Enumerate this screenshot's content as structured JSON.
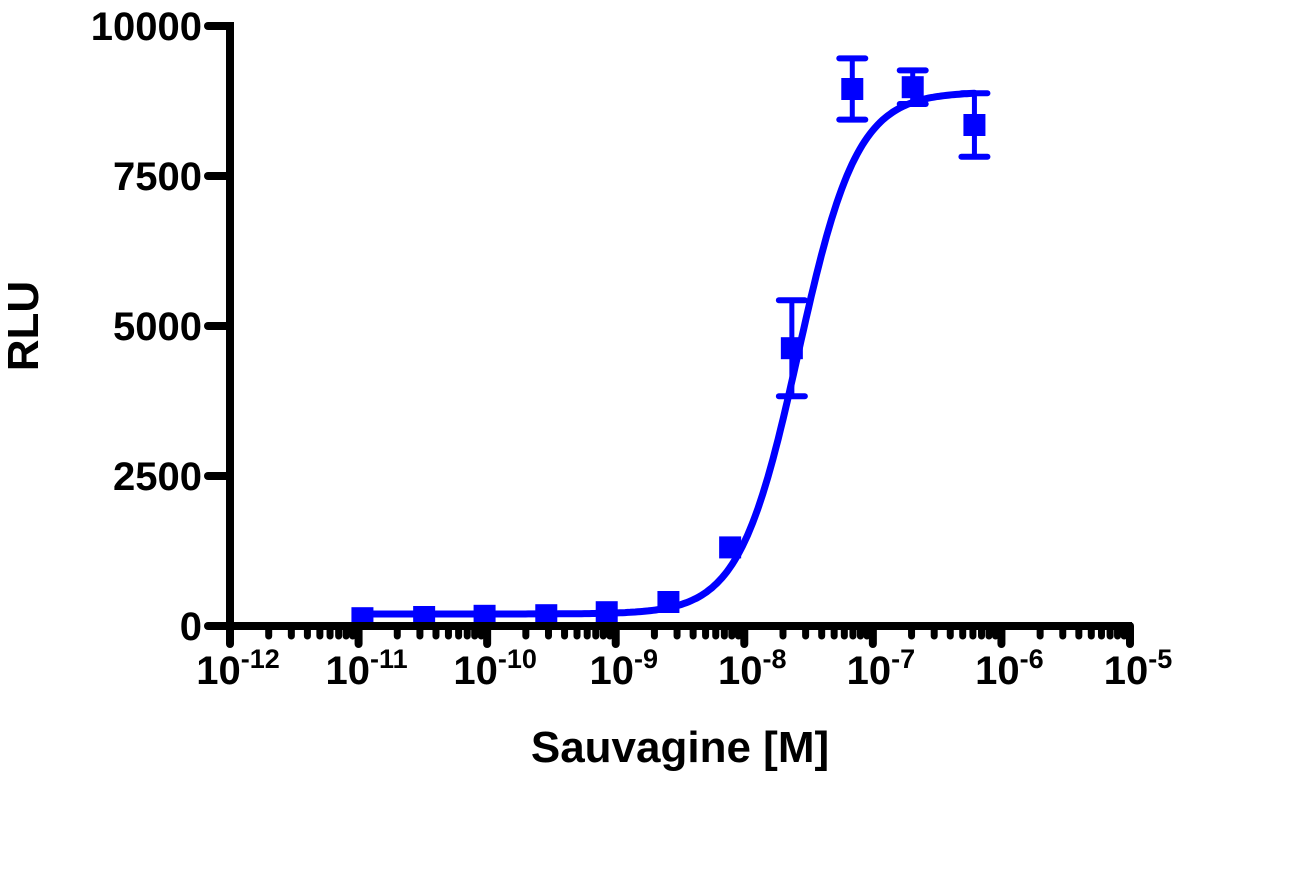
{
  "chart_data": {
    "type": "scatter",
    "title": "",
    "xlabel": "Sauvagine [M]",
    "ylabel": "RLU",
    "xscale": "log",
    "xlim_log10": [
      -12,
      -5
    ],
    "ylim": [
      0,
      10000
    ],
    "grid": false,
    "legend": null,
    "x_tick_labels": [
      {
        "base": "10",
        "exp": "-12",
        "log": -12
      },
      {
        "base": "10",
        "exp": "-11",
        "log": -11
      },
      {
        "base": "10",
        "exp": "-10",
        "log": -10
      },
      {
        "base": "10",
        "exp": "-9",
        "log": -9
      },
      {
        "base": "10",
        "exp": "-8",
        "log": -8
      },
      {
        "base": "10",
        "exp": "-7",
        "log": -7
      },
      {
        "base": "10",
        "exp": "-6",
        "log": -6
      },
      {
        "base": "10",
        "exp": "-5",
        "log": -5
      }
    ],
    "y_ticks": [
      0,
      2500,
      5000,
      7500,
      10000
    ],
    "y_tick_labels": [
      "0",
      "2500",
      "5000",
      "7500",
      "10000"
    ],
    "series": [
      {
        "name": "Sauvagine",
        "color": "#0000ff",
        "marker": "square",
        "points": [
          {
            "log_x": -10.97,
            "y": 130,
            "err": 0
          },
          {
            "log_x": -10.49,
            "y": 150,
            "err": 0
          },
          {
            "log_x": -10.02,
            "y": 170,
            "err": 0
          },
          {
            "log_x": -9.54,
            "y": 180,
            "err": 0
          },
          {
            "log_x": -9.07,
            "y": 230,
            "err": 0
          },
          {
            "log_x": -8.59,
            "y": 400,
            "err": 0
          },
          {
            "log_x": -8.11,
            "y": 1310,
            "err": 0
          },
          {
            "log_x": -7.63,
            "y": 4630,
            "err": 800
          },
          {
            "log_x": -7.16,
            "y": 8950,
            "err": 510
          },
          {
            "log_x": -6.69,
            "y": 8980,
            "err": 280
          },
          {
            "log_x": -6.21,
            "y": 8350,
            "err": 530
          }
        ],
        "fit": {
          "model": "sigmoidal dose-response",
          "bottom": 200,
          "top": 8900,
          "log_ec50": -7.58,
          "hill_slope": 1.9,
          "log_x_range": [
            -10.97,
            -6.21
          ]
        }
      }
    ]
  }
}
